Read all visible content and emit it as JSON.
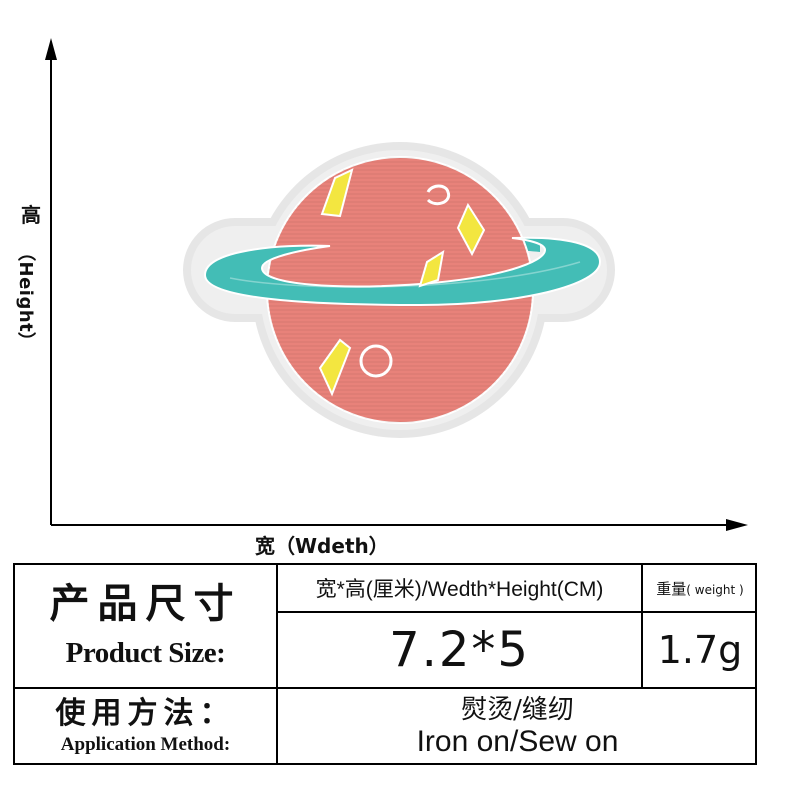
{
  "axes": {
    "height_label_zh": "高",
    "height_label_en": "（Height）",
    "width_label": "宽（Wdeth）"
  },
  "patch": {
    "subject": "planet embroidered patch",
    "colors": {
      "planet": "#e8827a",
      "ring": "#43bdb6",
      "accents": "#f3e640",
      "border": "#e2e2e2"
    }
  },
  "table": {
    "size_label_zh": "产品尺寸",
    "size_label_en": "Product Size:",
    "dims_header": "宽*高(厘米)/Wedth*Height(CM)",
    "weight_header_zh": "重量",
    "weight_header_en": "( weight )",
    "dims_value": "7.2*5",
    "weight_value": "1.7g",
    "app_label_zh": "使用方法：",
    "app_label_en": "Application Method:",
    "method_zh": "熨烫/缝纫",
    "method_en": "Iron on/Sew on"
  }
}
